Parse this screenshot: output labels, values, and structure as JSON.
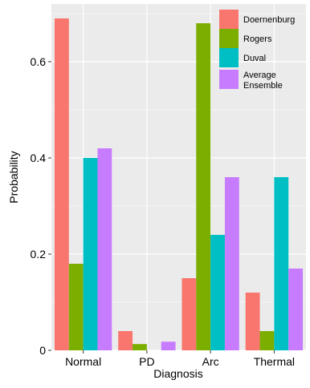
{
  "chart_data": {
    "type": "bar",
    "xlabel": "Diagnosis",
    "ylabel": "Probability",
    "categories": [
      "Normal",
      "PD",
      "Arc",
      "Thermal"
    ],
    "ylim": [
      0,
      0.72
    ],
    "yticks": [
      0,
      0.2,
      0.4,
      0.6
    ],
    "ytick_labels": [
      "0",
      "0.2",
      "0.4",
      "0.6"
    ],
    "grid": true,
    "legend_position": "top-right",
    "series": [
      {
        "name": "Doernenburg",
        "color": "#F8766D",
        "values": [
          0.69,
          0.04,
          0.15,
          0.12
        ]
      },
      {
        "name": "Rogers",
        "color": "#7CAE00",
        "values": [
          0.18,
          0.013,
          0.68,
          0.04
        ]
      },
      {
        "name": "Duval",
        "color": "#00BFC4",
        "values": [
          0.4,
          0,
          0.24,
          0.36
        ]
      },
      {
        "name": "Average Ensemble",
        "color": "#C77CFF",
        "values": [
          0.42,
          0.018,
          0.36,
          0.17
        ]
      }
    ]
  },
  "legend": {
    "labels": [
      "Doernenburg",
      "Rogers",
      "Duval",
      "Average Ensemble"
    ]
  },
  "colors": {
    "panel_background": "#EBEBEB",
    "grid": "#FFFFFF"
  }
}
